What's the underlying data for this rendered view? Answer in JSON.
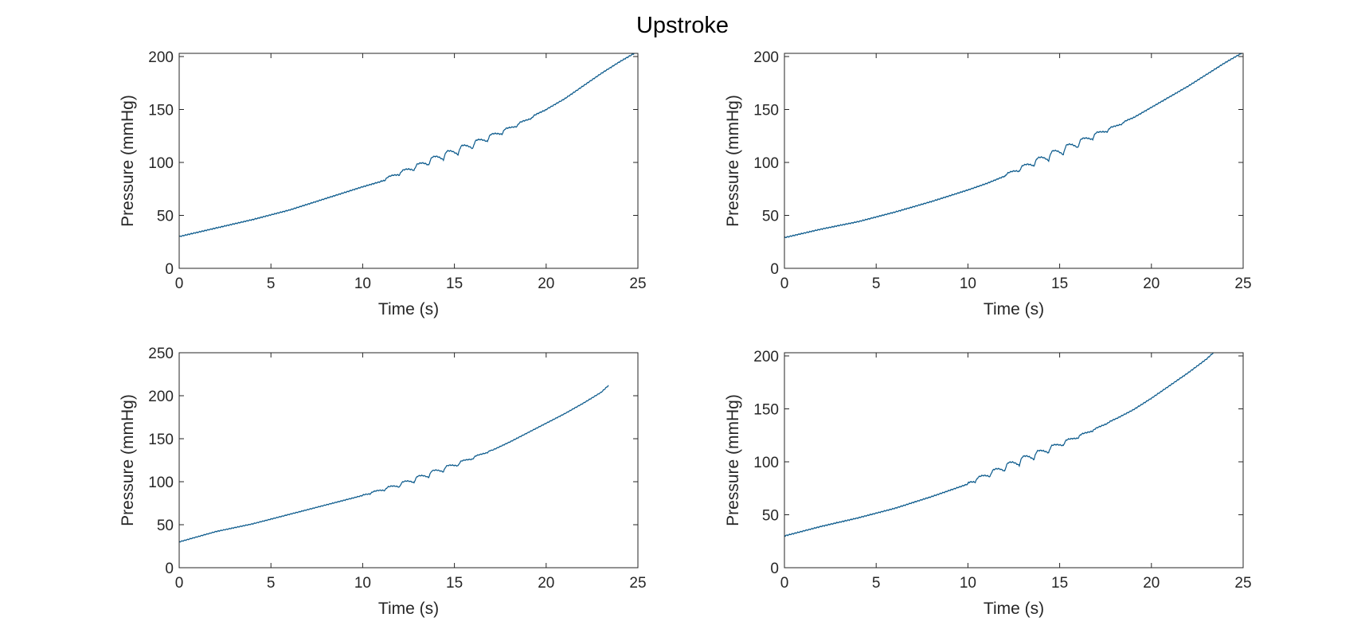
{
  "figure": {
    "title": "Upstroke"
  },
  "colors": {
    "line": "#0b5a8c",
    "axes": "#262626",
    "background": "#ffffff"
  },
  "chart_data": [
    {
      "type": "line",
      "xlabel": "Time (s)",
      "ylabel": "Pressure (mmHg)",
      "xlim": [
        0,
        25
      ],
      "ylim": [
        0,
        203
      ],
      "xticks": [
        0,
        5,
        10,
        15,
        20,
        25
      ],
      "yticks": [
        0,
        50,
        100,
        150,
        200
      ],
      "grid": false,
      "series": [
        {
          "x": [
            0,
            2,
            4,
            6,
            8,
            10,
            11,
            12,
            13,
            14,
            15,
            16,
            17,
            18,
            19,
            20,
            21,
            22,
            23,
            24,
            25
          ],
          "values": [
            30,
            38,
            46,
            55,
            66,
            77,
            82,
            89,
            95,
            102,
            108,
            115,
            123,
            131,
            140,
            150,
            160,
            172,
            184,
            195,
            205
          ],
          "oscillation": {
            "start": 11,
            "end": 20,
            "peak_time": 15,
            "peak_amplitude": 4.5
          }
        }
      ]
    },
    {
      "type": "line",
      "xlabel": "Time (s)",
      "ylabel": "Pressure (mmHg)",
      "xlim": [
        0,
        25
      ],
      "ylim": [
        0,
        203
      ],
      "xticks": [
        0,
        5,
        10,
        15,
        20,
        25
      ],
      "yticks": [
        0,
        50,
        100,
        150,
        200
      ],
      "grid": false,
      "series": [
        {
          "x": [
            0,
            2,
            4,
            6,
            8,
            10,
            11,
            12,
            13,
            14,
            15,
            16,
            17,
            18,
            19,
            20,
            21,
            22,
            23,
            24,
            25
          ],
          "values": [
            29,
            37,
            44,
            53,
            63,
            74,
            80,
            87,
            94,
            101,
            108,
            116,
            125,
            133,
            142,
            152,
            162,
            172,
            183,
            194,
            204
          ],
          "oscillation": {
            "start": 12,
            "end": 19,
            "peak_time": 15,
            "peak_amplitude": 5
          }
        }
      ]
    },
    {
      "type": "line",
      "xlabel": "Time (s)",
      "ylabel": "Pressure (mmHg)",
      "xlim": [
        0,
        25
      ],
      "ylim": [
        0,
        250
      ],
      "xticks": [
        0,
        5,
        10,
        15,
        20,
        25
      ],
      "yticks": [
        0,
        50,
        100,
        150,
        200,
        250
      ],
      "grid": false,
      "series": [
        {
          "x": [
            0,
            2,
            4,
            6,
            8,
            10,
            12,
            13,
            14,
            15,
            16,
            17,
            18,
            19,
            20,
            21,
            22,
            23,
            23.4
          ],
          "values": [
            30,
            42,
            51,
            62,
            73,
            84,
            95,
            102,
            110,
            118,
            127,
            136,
            146,
            157,
            168,
            179,
            191,
            204,
            212
          ],
          "oscillation": {
            "start": 10,
            "end": 17,
            "peak_time": 13.5,
            "peak_amplitude": 4
          }
        }
      ]
    },
    {
      "type": "line",
      "xlabel": "Time (s)",
      "ylabel": "Pressure (mmHg)",
      "xlim": [
        0,
        25
      ],
      "ylim": [
        0,
        203
      ],
      "xticks": [
        0,
        5,
        10,
        15,
        20,
        25
      ],
      "yticks": [
        0,
        50,
        100,
        150,
        200
      ],
      "grid": false,
      "series": [
        {
          "x": [
            0,
            2,
            4,
            6,
            8,
            10,
            11,
            12,
            13,
            14,
            15,
            16,
            17,
            18,
            19,
            20,
            21,
            22,
            23,
            23.5
          ],
          "values": [
            30,
            39,
            47,
            56,
            67,
            79,
            86,
            93,
            100,
            107,
            115,
            123,
            131,
            140,
            149,
            160,
            172,
            184,
            197,
            205
          ],
          "oscillation": {
            "start": 10,
            "end": 18,
            "peak_time": 13,
            "peak_amplitude": 4.5
          }
        }
      ]
    }
  ]
}
